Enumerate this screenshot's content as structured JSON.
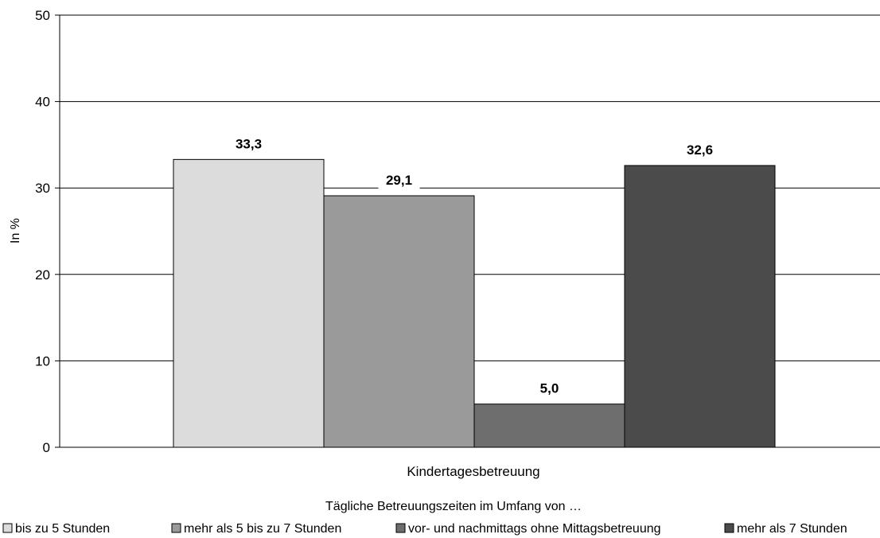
{
  "chart_data": {
    "type": "bar",
    "categories": [
      "Kindertagesbetreuung"
    ],
    "series": [
      {
        "name": "bis zu 5 Stunden",
        "values": [
          33.3
        ],
        "label": "33,3",
        "color": "#dcdcdc"
      },
      {
        "name": "mehr als 5 bis zu 7 Stunden",
        "values": [
          29.1
        ],
        "label": "29,1",
        "color": "#9a9a9a"
      },
      {
        "name": "vor- und nachmittags ohne Mittagsbetreuung",
        "values": [
          5.0
        ],
        "label": "5,0",
        "color": "#6e6e6e"
      },
      {
        "name": "mehr als 7 Stunden",
        "values": [
          32.6
        ],
        "label": "32,6",
        "color": "#4b4b4b"
      }
    ],
    "ylabel": "In %",
    "xlabel": "",
    "ylim": [
      0,
      50
    ],
    "yticks": [
      0,
      10,
      20,
      30,
      40,
      50
    ],
    "grid": true,
    "legend_title": "Tägliche Betreuungszeiten im Umfang von …",
    "legend_position": "bottom"
  }
}
